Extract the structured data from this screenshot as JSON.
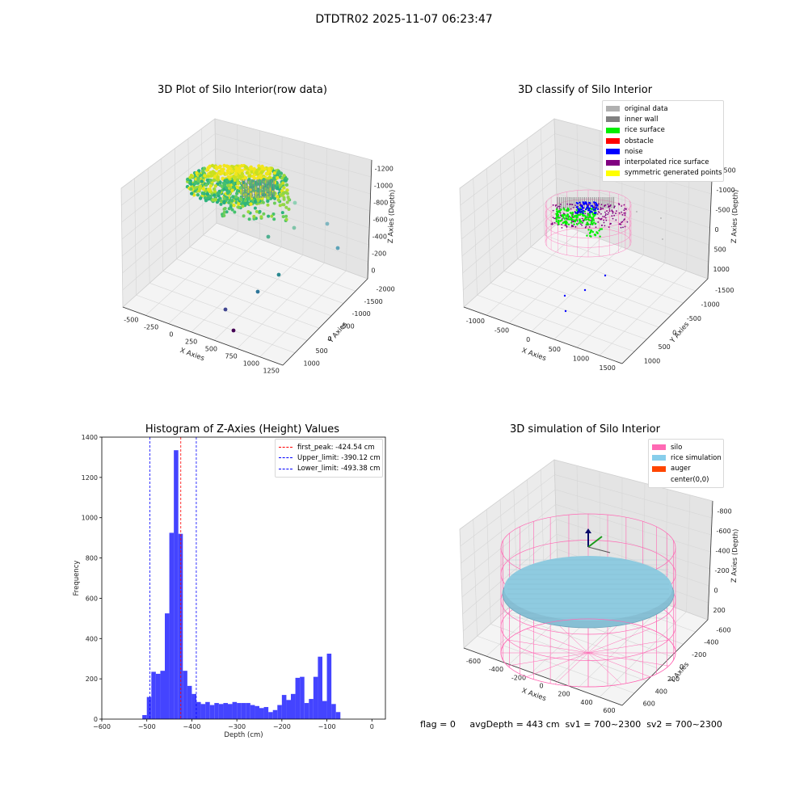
{
  "suptitle": "DTDTR02 2025-11-07 06:23:47",
  "panels": {
    "raw": {
      "title": "3D Plot of Silo Interior(row data)",
      "xlabel": "X Axies",
      "ylabel": "Y Axies",
      "zlabel": "Z Axies (Depth)",
      "xticks": [
        "-500",
        "-250",
        "0",
        "250",
        "500",
        "750",
        "1000",
        "1250"
      ],
      "yticks": [
        "1000",
        "500",
        "0",
        "-500",
        "-1000",
        "-1500",
        "-2000"
      ],
      "zticks": [
        "0",
        "-200",
        "-400",
        "-600",
        "-800",
        "-1000",
        "-1200"
      ]
    },
    "classify": {
      "title": "3D classify of Silo Interior",
      "xlabel": "X Axies",
      "ylabel": "Y Axies",
      "zlabel": "Z Axies (Depth)",
      "xticks": [
        "-1000",
        "-500",
        "0",
        "500",
        "1000",
        "1500"
      ],
      "yticks": [
        "1000",
        "500",
        "0",
        "-500",
        "-1000",
        "-1500"
      ],
      "zticks": [
        "1000",
        "500",
        "0",
        "-500",
        "-1000",
        "-1500"
      ],
      "legend": [
        {
          "label": "original data",
          "color": "#b0b0b0"
        },
        {
          "label": "inner wall",
          "color": "#808080"
        },
        {
          "label": "rice surface",
          "color": "#00ee00"
        },
        {
          "label": "obstacle",
          "color": "#ff0000"
        },
        {
          "label": "noise",
          "color": "#0000ff"
        },
        {
          "label": "interpolated rice surface",
          "color": "#800080"
        },
        {
          "label": "symmetric generated points",
          "color": "#ffff00"
        }
      ]
    },
    "histogram": {
      "title": "Histogram of Z-Axies (Height) Values",
      "xlabel": "Depth (cm)",
      "ylabel": "Frequency",
      "legend": [
        {
          "label": "first_peak: -424.54 cm",
          "color": "#ff0000"
        },
        {
          "label": "Upper_limit: -390.12 cm",
          "color": "#0000ff"
        },
        {
          "label": "Lower_limit: -493.38 cm",
          "color": "#0000ff"
        }
      ]
    },
    "simulation": {
      "title": "3D simulation of Silo Interior",
      "xlabel": "X Axies",
      "ylabel": "Y Axies",
      "zlabel": "Z Axies (Depth)",
      "xticks": [
        "-600",
        "-400",
        "-200",
        "0",
        "200",
        "400",
        "600"
      ],
      "yticks": [
        "600",
        "400",
        "200",
        "0",
        "-200",
        "-400",
        "-600"
      ],
      "zticks": [
        "200",
        "0",
        "-200",
        "-400",
        "-600",
        "-800"
      ],
      "legend": [
        {
          "label": "silo",
          "color": "#ff69b4"
        },
        {
          "label": "rice simulation",
          "color": "#87ceeb"
        },
        {
          "label": "auger",
          "color": "#ff4500"
        },
        {
          "label": "center(0,0)",
          "color": ""
        }
      ]
    }
  },
  "footer": {
    "text": "flag = 0     avgDepth = 443 cm  sv1 = 700~2300  sv2 = 700~2300"
  },
  "chart_data": [
    {
      "type": "scatter",
      "title": "3D Plot of Silo Interior(row data)",
      "xlabel": "X Axies",
      "ylabel": "Y Axies",
      "zlabel": "Z Axies (Depth)",
      "xlim": [
        -600,
        1350
      ],
      "ylim": [
        -2000,
        1200
      ],
      "zlim": [
        -1300,
        50
      ],
      "grid": true
    },
    {
      "type": "scatter",
      "title": "3D classify of Silo Interior",
      "xlabel": "X Axies",
      "ylabel": "Y Axies",
      "zlabel": "Z Axies (Depth)",
      "xlim": [
        -1200,
        1700
      ],
      "ylim": [
        -1700,
        1200
      ],
      "zlim": [
        -1700,
        1100
      ],
      "grid": true,
      "legend_position": "top-right"
    },
    {
      "type": "bar",
      "title": "Histogram of Z-Axies (Height) Values",
      "xlabel": "Depth (cm)",
      "ylabel": "Frequency",
      "xlim": [
        -600,
        30
      ],
      "ylim": [
        0,
        1400
      ],
      "xticks": [
        -600,
        -500,
        -400,
        -300,
        -200,
        -100,
        0
      ],
      "yticks": [
        0,
        200,
        400,
        600,
        800,
        1000,
        1200,
        1400
      ],
      "bin_start": -510,
      "bin_width": 10,
      "values": [
        20,
        110,
        235,
        225,
        240,
        525,
        925,
        1335,
        920,
        240,
        165,
        125,
        85,
        75,
        85,
        70,
        80,
        75,
        80,
        75,
        85,
        80,
        80,
        80,
        70,
        65,
        55,
        60,
        35,
        45,
        70,
        120,
        95,
        125,
        205,
        210,
        80,
        100,
        210,
        310,
        90,
        325,
        75,
        35
      ],
      "vlines": [
        {
          "x": -424.54,
          "label": "first_peak: -424.54 cm",
          "color": "#ff0000"
        },
        {
          "x": -390.12,
          "label": "Upper_limit: -390.12 cm",
          "color": "#0000ff"
        },
        {
          "x": -493.38,
          "label": "Lower_limit: -493.38 cm",
          "color": "#0000ff"
        }
      ],
      "bar_color": "#4444ff",
      "legend_position": "top-right"
    },
    {
      "type": "scatter",
      "title": "3D simulation of Silo Interior",
      "xlabel": "X Axies",
      "ylabel": "Y Axies",
      "zlabel": "Z Axies (Depth)",
      "xlim": [
        -700,
        700
      ],
      "ylim": [
        -700,
        700
      ],
      "zlim": [
        -900,
        300
      ],
      "grid": true,
      "legend_position": "top-right"
    }
  ]
}
